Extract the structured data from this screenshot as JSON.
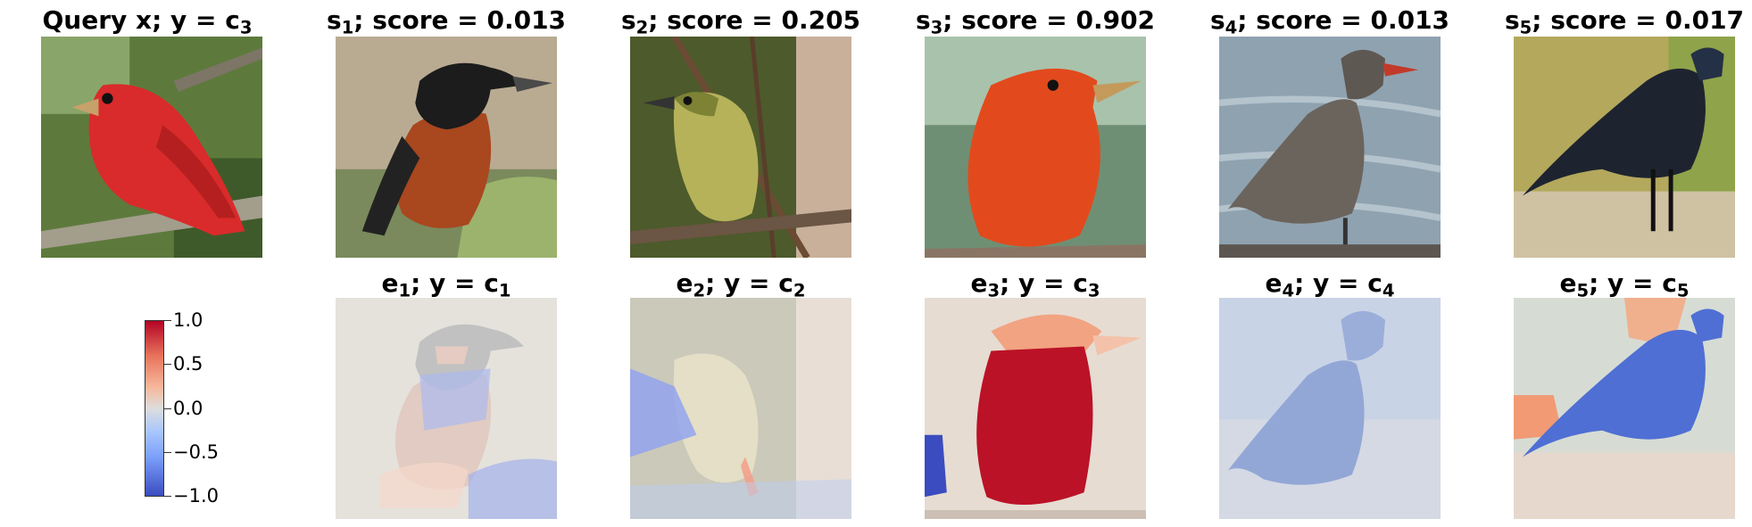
{
  "panels": {
    "query": {
      "prefix": "Query x; y = c",
      "sub": "3"
    },
    "top": [
      {
        "sym": "s",
        "sub": "1",
        "rest": "; score = 0.013"
      },
      {
        "sym": "s",
        "sub": "2",
        "rest": "; score = 0.205"
      },
      {
        "sym": "s",
        "sub": "3",
        "rest": "; score = 0.902"
      },
      {
        "sym": "s",
        "sub": "4",
        "rest": "; score = 0.013"
      },
      {
        "sym": "s",
        "sub": "5",
        "rest": "; score = 0.017"
      }
    ],
    "bottom": [
      {
        "sym": "e",
        "sub": "1",
        "rest": "; y = c",
        "csub": "1"
      },
      {
        "sym": "e",
        "sub": "2",
        "rest": "; y = c",
        "csub": "2"
      },
      {
        "sym": "e",
        "sub": "3",
        "rest": "; y = c",
        "csub": "3"
      },
      {
        "sym": "e",
        "sub": "4",
        "rest": "; y = c",
        "csub": "4"
      },
      {
        "sym": "e",
        "sub": "5",
        "rest": "; y = c",
        "csub": "5"
      }
    ]
  },
  "colorbar": {
    "ticks": [
      "1.0",
      "0.5",
      "0.0",
      "−0.5",
      "−1.0"
    ],
    "colors": {
      "high": "#b40426",
      "mid": "#dddddd",
      "low": "#3b4cc0"
    }
  }
}
